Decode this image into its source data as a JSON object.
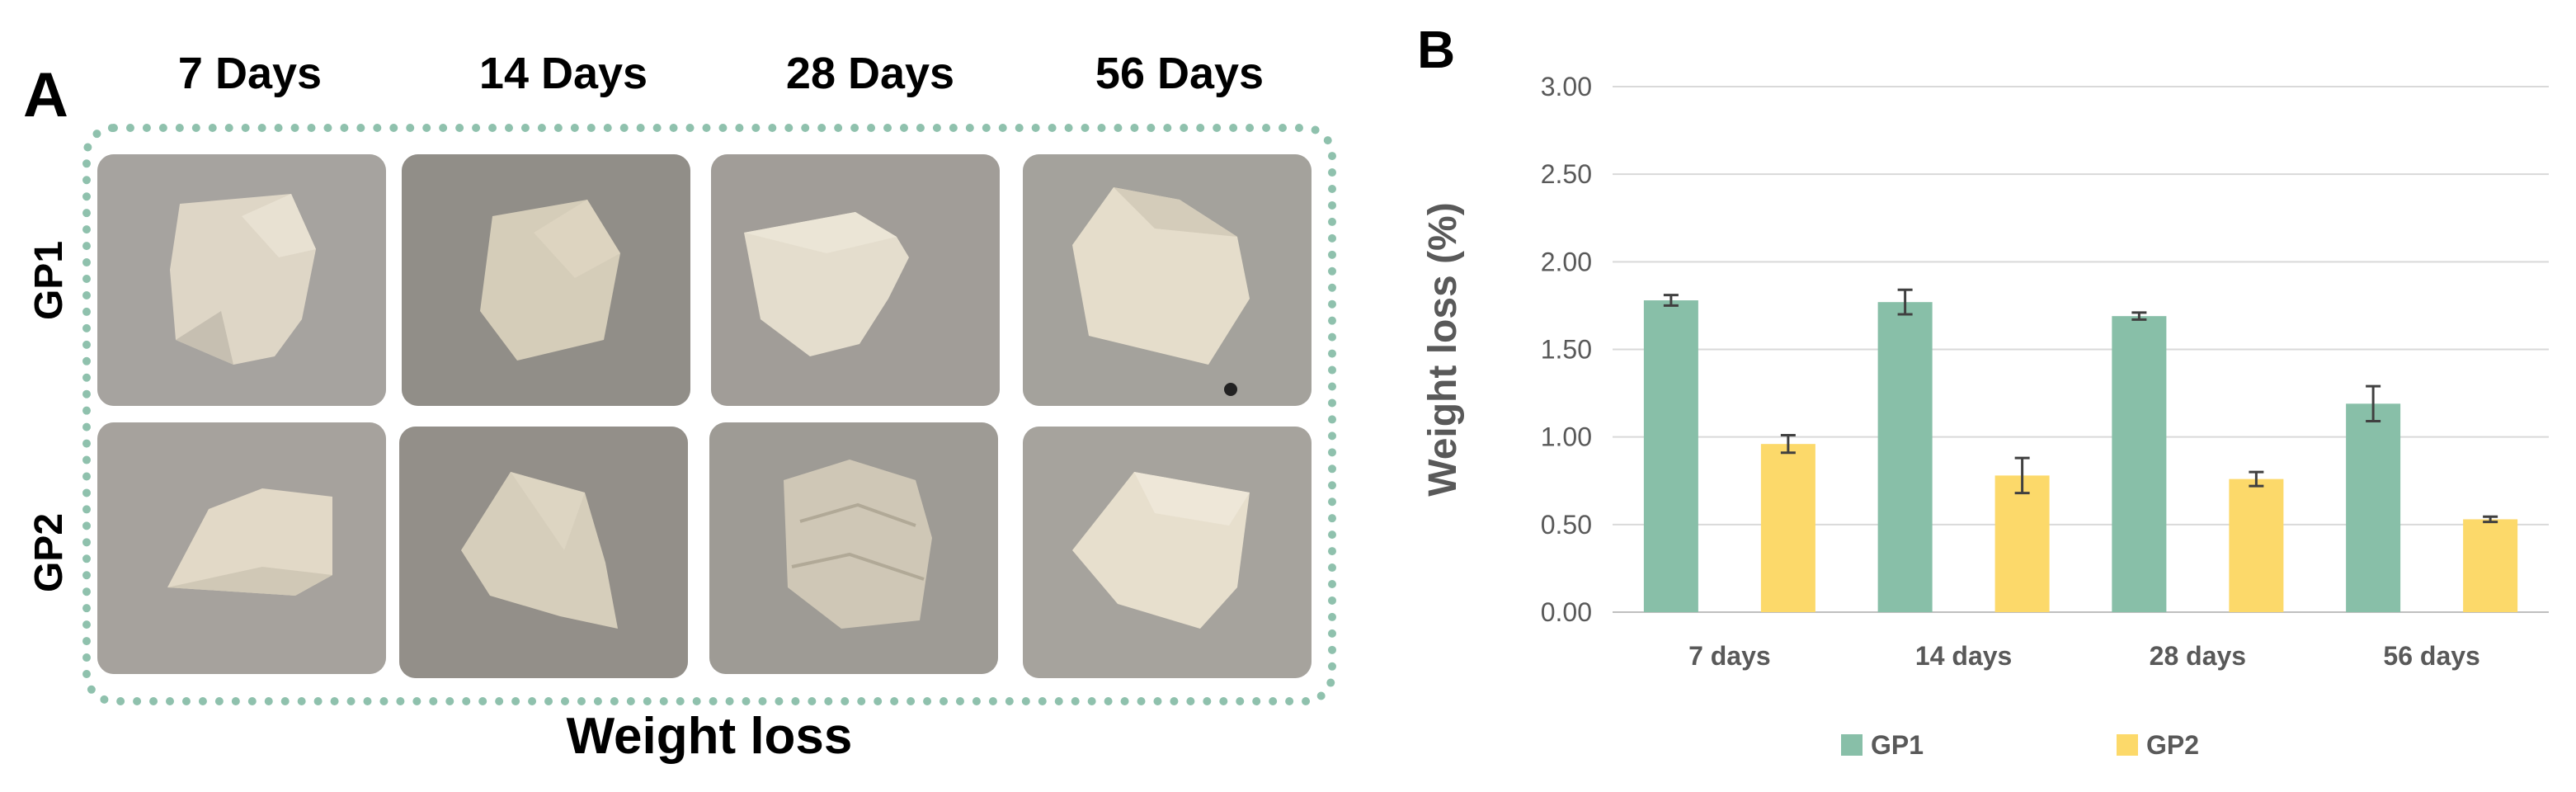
{
  "panel_a": {
    "letter": "A",
    "columns": [
      "7 Days",
      "14 Days",
      "28 Days",
      "56 Days"
    ],
    "rows": [
      "GP1",
      "GP2"
    ],
    "caption": "Weight loss"
  },
  "panel_b": {
    "letter": "B"
  },
  "colors": {
    "gp1": "#88bfa8",
    "gp2": "#fcd96a",
    "grid": "#d9d9d9",
    "axis_text": "#595959",
    "frame": "#8fc1ad"
  },
  "chart_data": {
    "type": "bar",
    "categories": [
      "7 days",
      "14 days",
      "28 days",
      "56 days"
    ],
    "series": [
      {
        "name": "GP1",
        "values": [
          1.78,
          1.77,
          1.69,
          1.19
        ],
        "errors": [
          0.03,
          0.07,
          0.02,
          0.1
        ]
      },
      {
        "name": "GP2",
        "values": [
          0.96,
          0.78,
          0.76,
          0.53
        ],
        "errors": [
          0.05,
          0.1,
          0.04,
          0.015
        ]
      }
    ],
    "title": "",
    "xlabel": "",
    "ylabel": "Weight loss (%)",
    "ylim": [
      0,
      3
    ],
    "yticks": [
      "0.00",
      "0.50",
      "1.00",
      "1.50",
      "2.00",
      "2.50",
      "3.00"
    ],
    "grid": true,
    "legend": "bottom"
  }
}
